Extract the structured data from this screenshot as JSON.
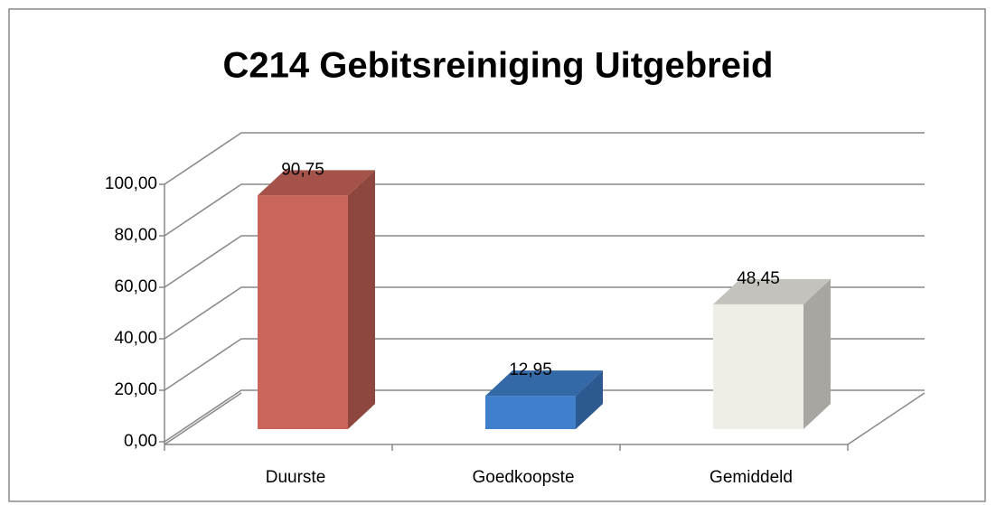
{
  "chart_data": {
    "type": "bar3d",
    "title": "C214 Gebitsreiniging Uitgebreid",
    "categories": [
      "Duurste",
      "Goedkoopste",
      "Gemiddeld"
    ],
    "values": [
      90.75,
      12.95,
      48.45
    ],
    "value_labels": [
      "90,75",
      "12,95",
      "48,45"
    ],
    "colors": [
      "#c9655a",
      "#3f7fcc",
      "#eeede6"
    ],
    "ylim": [
      0,
      100
    ],
    "yticks": [
      {
        "value": 0,
        "label": "0,00"
      },
      {
        "value": 20,
        "label": "20,00"
      },
      {
        "value": 40,
        "label": "40,00"
      },
      {
        "value": 60,
        "label": "60,00"
      },
      {
        "value": 80,
        "label": "80,00"
      },
      {
        "value": 100,
        "label": "100,00"
      }
    ],
    "grid": true
  }
}
